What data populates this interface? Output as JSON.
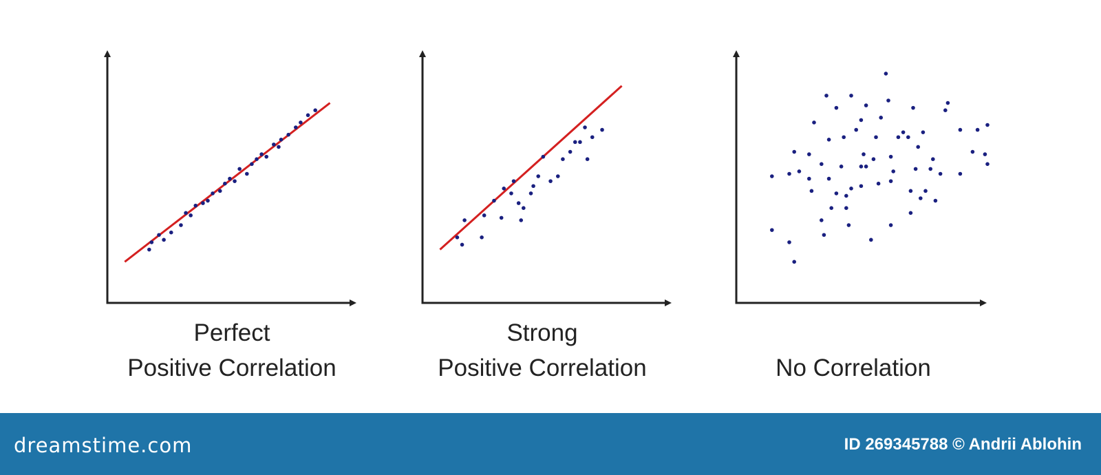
{
  "chart_data": [
    {
      "type": "scatter",
      "title_lines": [
        "Perfect",
        "Positive Correlation"
      ],
      "xlim": [
        0,
        10
      ],
      "ylim": [
        0,
        10
      ],
      "grid": false,
      "points": [
        [
          1.6,
          1.9
        ],
        [
          1.7,
          2.2
        ],
        [
          2.0,
          2.5
        ],
        [
          2.2,
          2.3
        ],
        [
          2.5,
          2.6
        ],
        [
          2.9,
          2.9
        ],
        [
          3.1,
          3.4
        ],
        [
          3.3,
          3.3
        ],
        [
          3.5,
          3.7
        ],
        [
          3.8,
          3.8
        ],
        [
          4.0,
          3.9
        ],
        [
          4.2,
          4.2
        ],
        [
          4.5,
          4.3
        ],
        [
          4.7,
          4.6
        ],
        [
          4.9,
          4.8
        ],
        [
          5.1,
          4.7
        ],
        [
          5.3,
          5.2
        ],
        [
          5.6,
          5.0
        ],
        [
          5.8,
          5.4
        ],
        [
          6.0,
          5.6
        ],
        [
          6.2,
          5.8
        ],
        [
          6.4,
          5.7
        ],
        [
          6.7,
          6.2
        ],
        [
          6.9,
          6.1
        ],
        [
          7.0,
          6.4
        ],
        [
          7.3,
          6.6
        ],
        [
          7.6,
          6.9
        ],
        [
          7.8,
          7.1
        ],
        [
          8.1,
          7.4
        ],
        [
          8.4,
          7.6
        ]
      ],
      "trend_line": [
        [
          0.6,
          1.4
        ],
        [
          9.0,
          7.9
        ]
      ],
      "point_color": "#1a2080",
      "line_color": "#d42020"
    },
    {
      "type": "scatter",
      "title_lines": [
        "Strong",
        "Positive Correlation"
      ],
      "xlim": [
        0,
        10
      ],
      "ylim": [
        0,
        10
      ],
      "grid": false,
      "points": [
        [
          1.3,
          2.4
        ],
        [
          1.5,
          2.1
        ],
        [
          1.6,
          3.1
        ],
        [
          2.3,
          2.4
        ],
        [
          2.4,
          3.3
        ],
        [
          2.8,
          3.9
        ],
        [
          3.1,
          3.2
        ],
        [
          3.2,
          4.4
        ],
        [
          3.5,
          4.2
        ],
        [
          3.6,
          4.7
        ],
        [
          3.8,
          3.8
        ],
        [
          3.9,
          3.1
        ],
        [
          4.0,
          3.6
        ],
        [
          4.3,
          4.2
        ],
        [
          4.4,
          4.5
        ],
        [
          4.6,
          4.9
        ],
        [
          4.8,
          5.7
        ],
        [
          5.1,
          4.7
        ],
        [
          5.4,
          4.9
        ],
        [
          5.6,
          5.6
        ],
        [
          5.9,
          5.9
        ],
        [
          6.1,
          6.3
        ],
        [
          6.3,
          6.3
        ],
        [
          6.5,
          6.9
        ],
        [
          6.6,
          5.6
        ],
        [
          6.8,
          6.5
        ],
        [
          7.2,
          6.8
        ]
      ],
      "trend_line": [
        [
          0.6,
          1.9
        ],
        [
          8.0,
          8.6
        ]
      ],
      "point_color": "#1a2080",
      "line_color": "#d42020"
    },
    {
      "type": "scatter",
      "title_lines": [
        "No Correlation"
      ],
      "xlim": [
        0,
        10
      ],
      "ylim": [
        0,
        10
      ],
      "grid": false,
      "points": [
        [
          1.3,
          4.9
        ],
        [
          1.3,
          2.7
        ],
        [
          2.0,
          5.0
        ],
        [
          2.0,
          2.2
        ],
        [
          2.2,
          5.9
        ],
        [
          2.2,
          1.4
        ],
        [
          2.4,
          5.1
        ],
        [
          2.8,
          5.8
        ],
        [
          2.8,
          4.8
        ],
        [
          2.9,
          4.3
        ],
        [
          3.0,
          7.1
        ],
        [
          3.3,
          5.4
        ],
        [
          3.3,
          3.1
        ],
        [
          3.4,
          2.5
        ],
        [
          3.5,
          8.2
        ],
        [
          3.6,
          6.4
        ],
        [
          3.6,
          4.8
        ],
        [
          3.7,
          3.6
        ],
        [
          3.9,
          7.7
        ],
        [
          3.9,
          4.2
        ],
        [
          4.1,
          5.3
        ],
        [
          4.2,
          6.5
        ],
        [
          4.3,
          4.1
        ],
        [
          4.3,
          3.6
        ],
        [
          4.4,
          2.9
        ],
        [
          4.5,
          8.2
        ],
        [
          4.5,
          4.4
        ],
        [
          4.7,
          6.8
        ],
        [
          4.9,
          7.2
        ],
        [
          4.9,
          5.3
        ],
        [
          4.9,
          4.5
        ],
        [
          5.0,
          5.8
        ],
        [
          5.1,
          5.3
        ],
        [
          5.1,
          7.8
        ],
        [
          5.3,
          2.3
        ],
        [
          5.4,
          5.6
        ],
        [
          5.5,
          6.5
        ],
        [
          5.6,
          4.6
        ],
        [
          5.7,
          7.3
        ],
        [
          5.9,
          9.1
        ],
        [
          6.0,
          8.0
        ],
        [
          6.1,
          5.7
        ],
        [
          6.1,
          4.7
        ],
        [
          6.1,
          2.9
        ],
        [
          6.2,
          5.1
        ],
        [
          6.4,
          6.5
        ],
        [
          6.6,
          6.7
        ],
        [
          6.8,
          6.5
        ],
        [
          6.9,
          4.3
        ],
        [
          6.9,
          3.4
        ],
        [
          7.0,
          7.7
        ],
        [
          7.1,
          5.2
        ],
        [
          7.2,
          6.1
        ],
        [
          7.3,
          4.0
        ],
        [
          7.4,
          6.7
        ],
        [
          7.5,
          4.3
        ],
        [
          7.7,
          5.2
        ],
        [
          7.8,
          5.6
        ],
        [
          7.9,
          3.9
        ],
        [
          8.1,
          5.0
        ],
        [
          8.3,
          7.6
        ],
        [
          8.4,
          7.9
        ],
        [
          8.9,
          6.8
        ],
        [
          8.9,
          5.0
        ],
        [
          9.4,
          5.9
        ],
        [
          9.6,
          6.8
        ],
        [
          9.9,
          5.8
        ],
        [
          10.0,
          5.4
        ],
        [
          10.0,
          7.0
        ]
      ],
      "point_color": "#1a2080"
    }
  ],
  "footer": {
    "brand": "dreamstime.com",
    "credit": "ID 269345788 © Andrii Ablohin"
  }
}
